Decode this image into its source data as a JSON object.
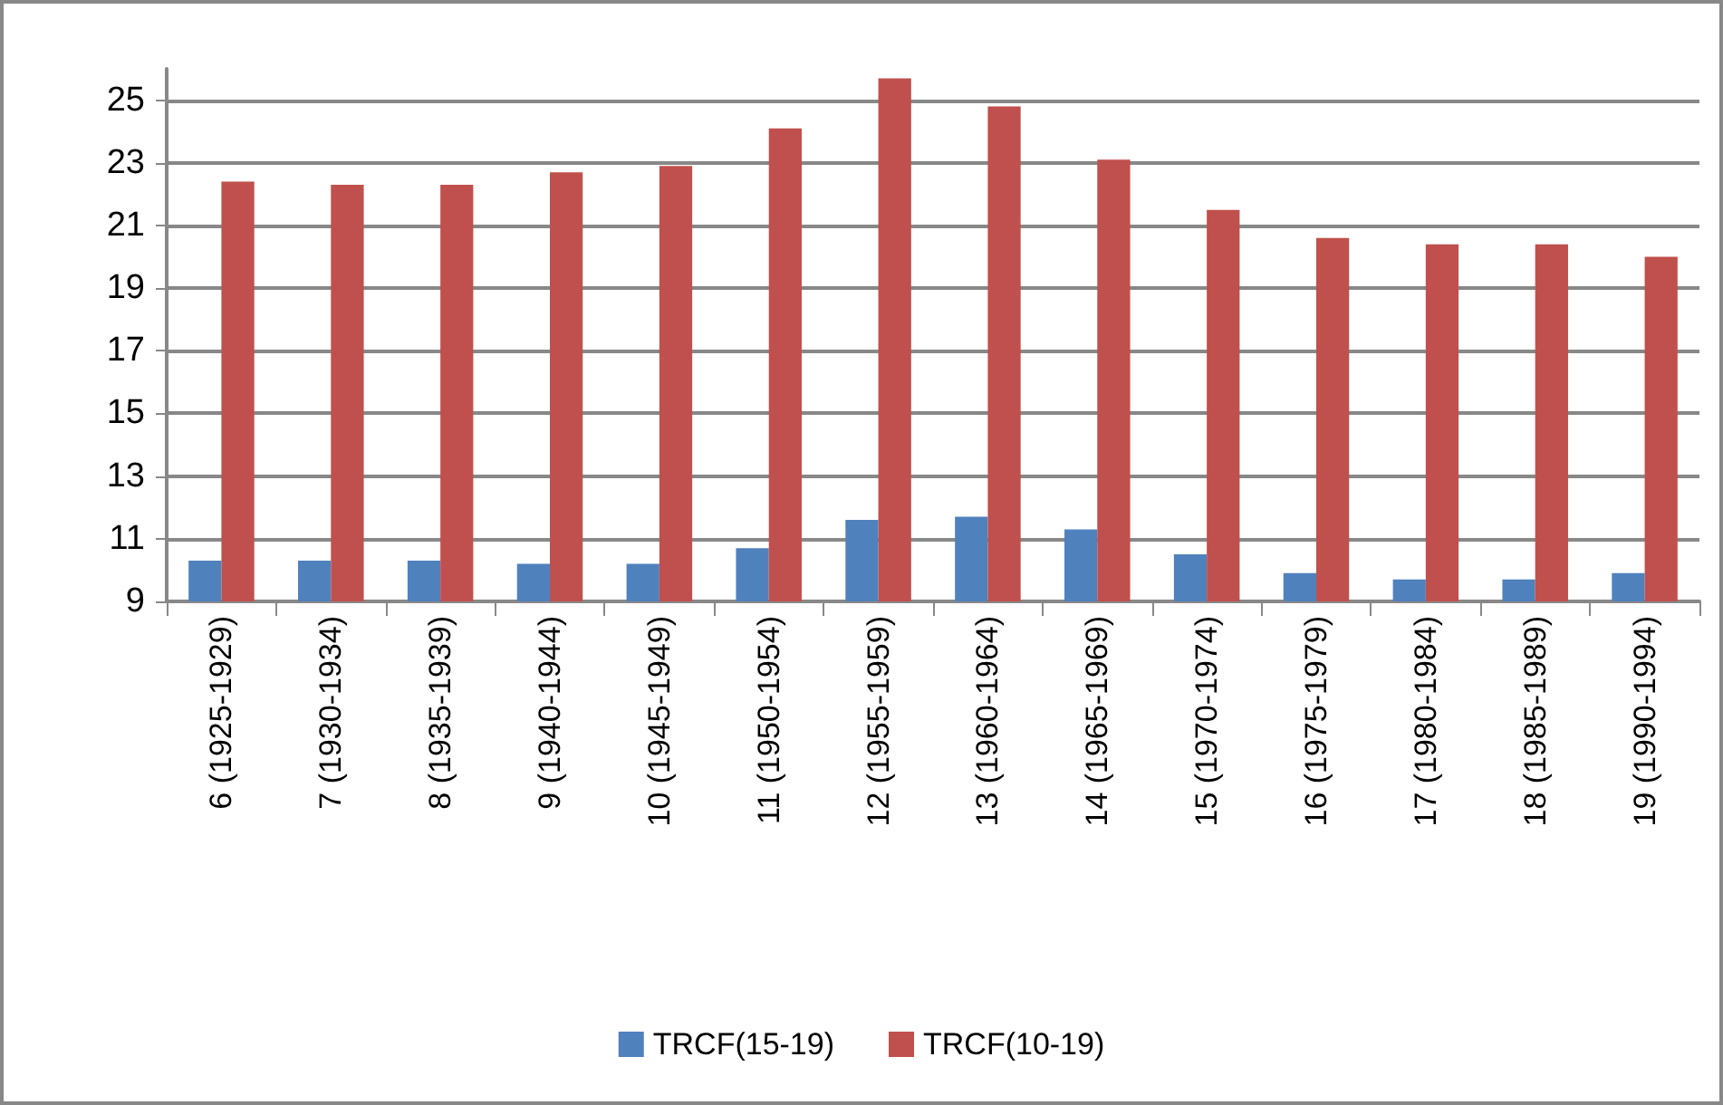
{
  "chart_data": {
    "type": "bar",
    "categories": [
      "6 (1925-1929)",
      "7 (1930-1934)",
      "8 (1935-1939)",
      "9 (1940-1944)",
      "10 (1945-1949)",
      "11 (1950-1954)",
      "12 (1955-1959)",
      "13 (1960-1964)",
      "14 (1965-1969)",
      "15 (1970-1974)",
      "16 (1975-1979)",
      "17 (1980-1984)",
      "18 (1985-1989)",
      "19 (1990-1994)"
    ],
    "series": [
      {
        "name": "TRCF(15-19)",
        "color": "#4f81bd",
        "values": [
          10.3,
          10.3,
          10.3,
          10.2,
          10.2,
          10.7,
          11.6,
          11.7,
          11.3,
          10.5,
          9.9,
          9.7,
          9.7,
          9.9
        ]
      },
      {
        "name": "TRCF(10-19)",
        "color": "#c0504d",
        "values": [
          22.4,
          22.3,
          22.3,
          22.7,
          22.9,
          24.1,
          25.7,
          24.8,
          23.1,
          21.5,
          20.6,
          20.4,
          20.4,
          20.0
        ]
      }
    ],
    "ylim": [
      9,
      26
    ],
    "yticks": [
      9,
      11,
      13,
      15,
      17,
      19,
      21,
      23,
      25
    ],
    "grid": "y",
    "legend": "bottom"
  }
}
